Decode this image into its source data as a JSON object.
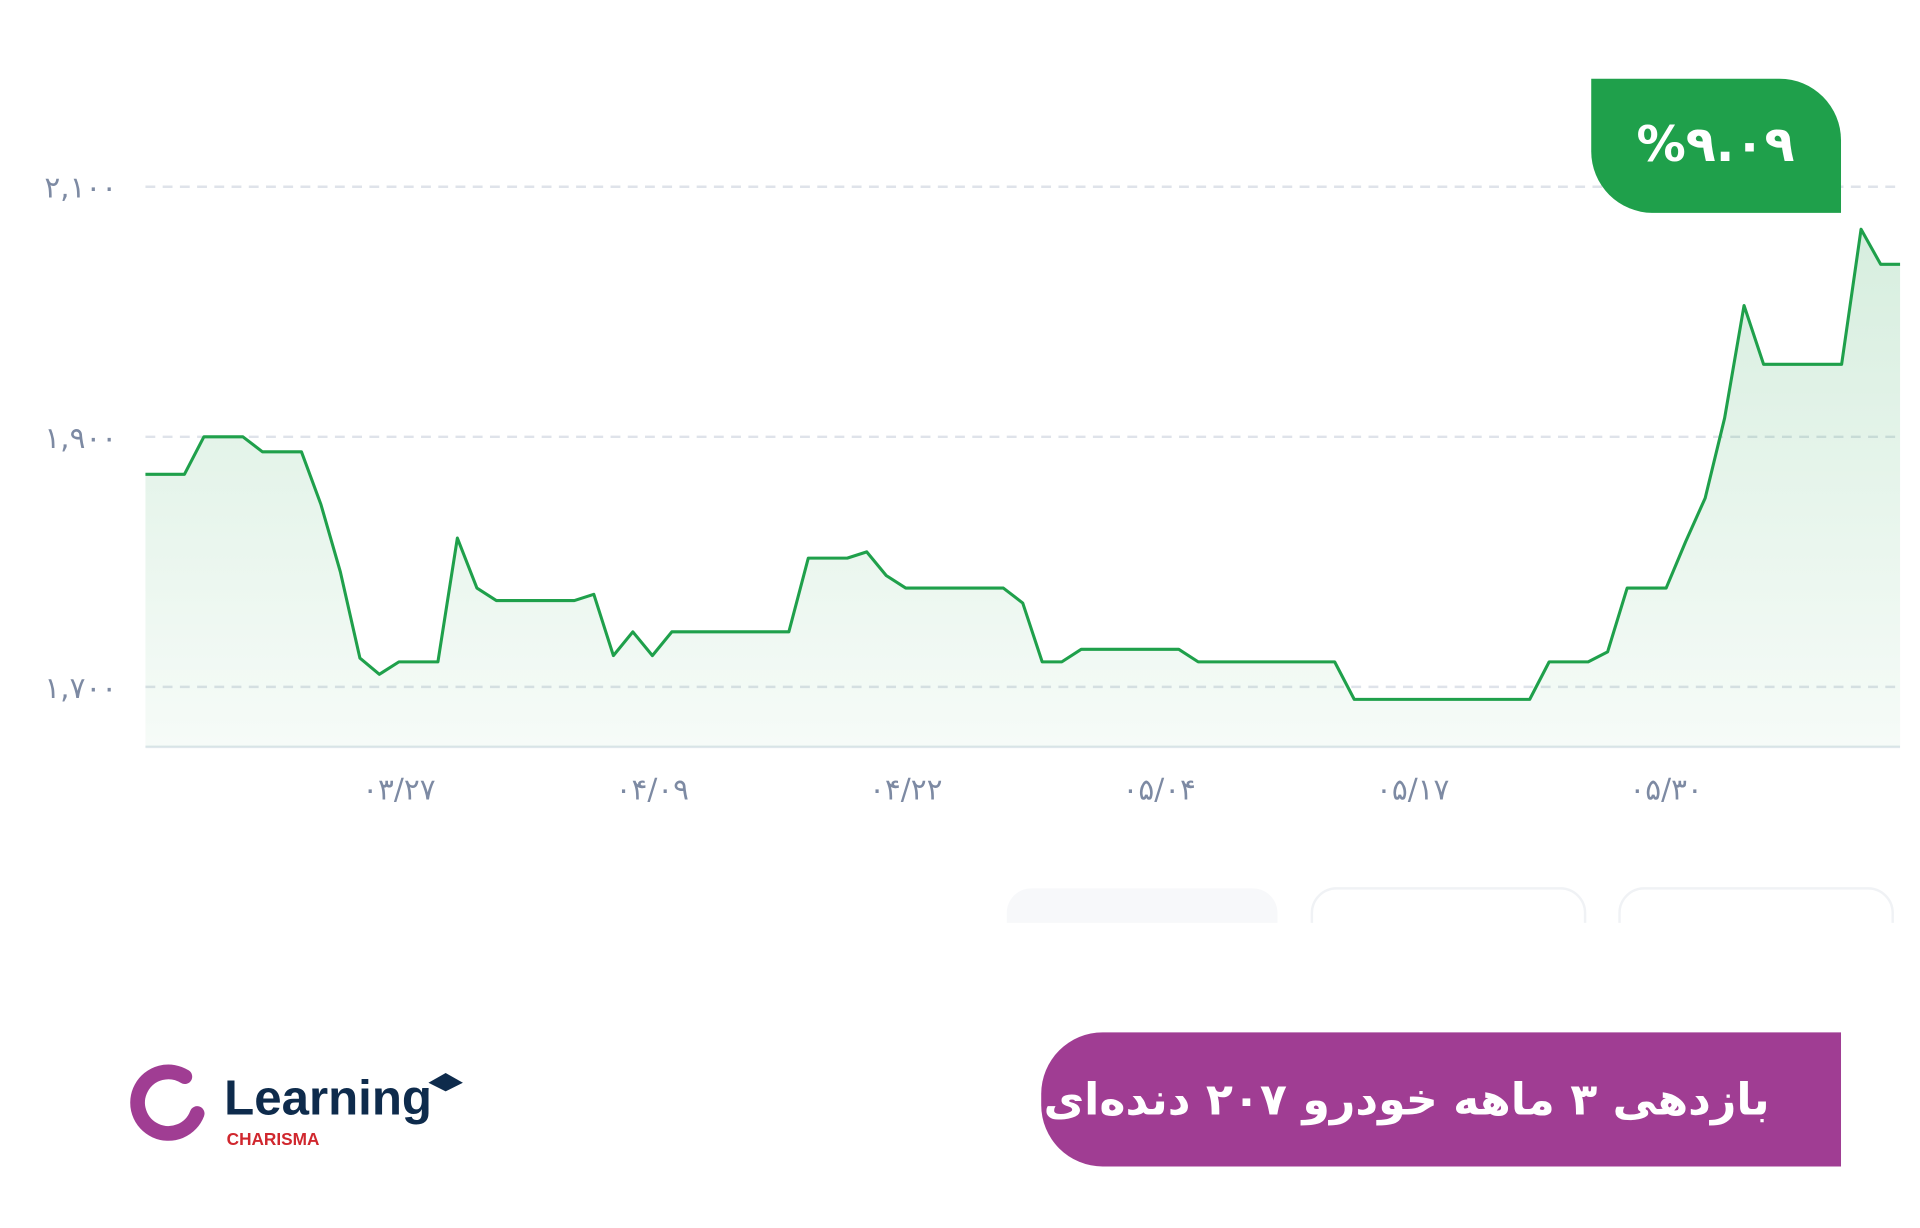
{
  "chart_data": {
    "type": "line",
    "title": "بازدهی ۳ ماهه خودرو ۲۰۷ دنده‌ای",
    "annotation": "%۹.۰۹",
    "categories": [
      null,
      null,
      null,
      null,
      null,
      null,
      null,
      null,
      null,
      null,
      null,
      null,
      null,
      "۰۳/۲۷",
      null,
      null,
      null,
      null,
      null,
      null,
      null,
      null,
      null,
      null,
      null,
      null,
      "۰۴/۰۹",
      null,
      null,
      null,
      null,
      null,
      null,
      null,
      null,
      null,
      null,
      null,
      null,
      "۰۴/۲۲",
      null,
      null,
      null,
      null,
      null,
      null,
      null,
      null,
      null,
      null,
      null,
      null,
      "۰۵/۰۴",
      null,
      null,
      null,
      null,
      null,
      null,
      null,
      null,
      null,
      null,
      null,
      null,
      "۰۵/۱۷",
      null,
      null,
      null,
      null,
      null,
      null,
      null,
      null,
      null,
      null,
      null,
      null,
      "۰۵/۳۰",
      null,
      null,
      null,
      null,
      null,
      null,
      null,
      null,
      null,
      null,
      null,
      null
    ],
    "values": [
      1870,
      1870,
      1870,
      1900,
      1900,
      1900,
      1888,
      1888,
      1888,
      1846,
      1792,
      1723,
      1710,
      1720,
      1720,
      1720,
      1819,
      1779,
      1769,
      1769,
      1769,
      1769,
      1769,
      1774,
      1725,
      1744,
      1725,
      1744,
      1744,
      1744,
      1744,
      1744,
      1744,
      1744,
      1803,
      1803,
      1803,
      1808,
      1789,
      1779,
      1779,
      1779,
      1779,
      1779,
      1779,
      1767,
      1720,
      1720,
      1730,
      1730,
      1730,
      1730,
      1730,
      1730,
      1720,
      1720,
      1720,
      1720,
      1720,
      1720,
      1720,
      1720,
      1690,
      1690,
      1690,
      1690,
      1690,
      1690,
      1690,
      1690,
      1690,
      1690,
      1720,
      1720,
      1720,
      1728,
      1779,
      1779,
      1779,
      1816,
      1851,
      1915,
      2005,
      1958,
      1958,
      1958,
      1958,
      1958,
      2066,
      2038,
      2038
    ],
    "color": "#1fa04b",
    "ylim": [
      1650,
      2150
    ],
    "yticks": [
      {
        "value": 1700,
        "label": "۱,۷۰۰"
      },
      {
        "value": 1900,
        "label": "۱,۹۰۰"
      },
      {
        "value": 2100,
        "label": "۲,۱۰۰"
      }
    ],
    "grid": true
  },
  "logo": {
    "name": "Learning",
    "tagline": "CHARISMA"
  }
}
